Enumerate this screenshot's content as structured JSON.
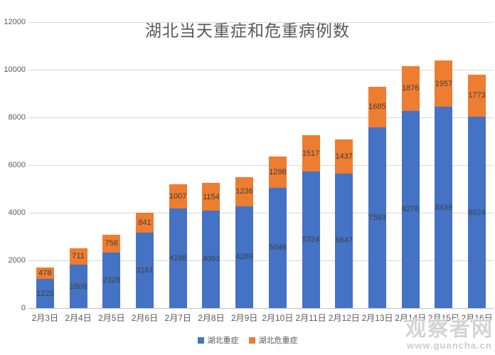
{
  "chart_data": {
    "type": "bar",
    "stacked": true,
    "title": "湖北当天重症和危重病例数",
    "categories": [
      "2月3日",
      "2月4日",
      "2月5日",
      "2月6日",
      "2月7日",
      "2月8日",
      "2月9日",
      "2月10日",
      "2月11日",
      "2月12日",
      "2月13日",
      "2月14日",
      "2月15日",
      "2月16日"
    ],
    "series": [
      {
        "name": "湖北重症",
        "color": "#4472C4",
        "values": [
          1223,
          1809,
          2328,
          3161,
          4188,
          4093,
          4269,
          5046,
          5724,
          5647,
          7593,
          8276,
          8439,
          8024
        ]
      },
      {
        "name": "湖北危重症",
        "color": "#ED7D31",
        "values": [
          478,
          711,
          756,
          841,
          1007,
          1154,
          1236,
          1298,
          1517,
          1437,
          1685,
          1876,
          1957,
          1773
        ]
      }
    ],
    "ylim": [
      0,
      12000
    ],
    "y_ticks": [
      0,
      2000,
      4000,
      6000,
      8000,
      10000,
      12000
    ],
    "grid": true,
    "legend_position": "bottom",
    "colors": {
      "title_text": "#595959",
      "axis_text": "#595959",
      "data_label_text": "#404040",
      "gridline": "#D9D9D9",
      "background": "#FFFFFF"
    }
  },
  "watermark": {
    "brand": "观察者网",
    "url": "www.guancha.cn"
  }
}
